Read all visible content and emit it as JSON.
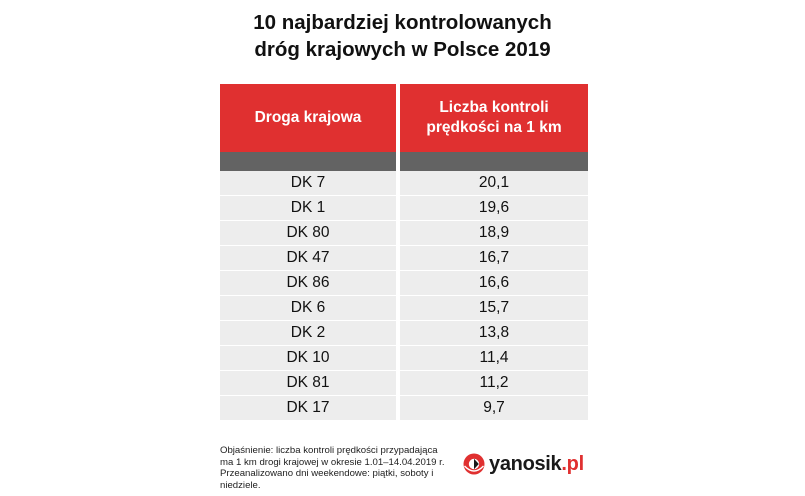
{
  "title": {
    "line1": "10 najbardziej kontrolowanych",
    "line2": "dróg krajowych w Polsce 2019"
  },
  "colors": {
    "header_red": "#e03030",
    "band_gray": "#636363",
    "row_gray": "#ededed",
    "logo_accent": "#e03030"
  },
  "chart_data": {
    "type": "table",
    "title": "10 najbardziej kontrolowanych dróg krajowych w Polsce 2019",
    "columns": [
      "Droga krajowa",
      "Liczba kontroli prędkości na 1 km"
    ],
    "rows": [
      [
        "DK 7",
        "20,1"
      ],
      [
        "DK 1",
        "19,6"
      ],
      [
        "DK 80",
        "18,9"
      ],
      [
        "DK 47",
        "16,7"
      ],
      [
        "DK 86",
        "16,6"
      ],
      [
        "DK 6",
        "15,7"
      ],
      [
        "DK 2",
        "13,8"
      ],
      [
        "DK 10",
        "11,4"
      ],
      [
        "DK 81",
        "11,2"
      ],
      [
        "DK 17",
        "9,7"
      ]
    ]
  },
  "table": {
    "header_col1": "Droga krajowa",
    "header_col2_line1": "Liczba kontroli",
    "header_col2_line2": "prędkości na 1 km"
  },
  "footnote": {
    "line1": "Objaśnienie: liczba kontroli prędkości przypadająca",
    "line2": "ma 1 km drogi krajowej w okresie 1.01–14.04.2019 r.",
    "line3": "Przeanalizowano dni weekendowe: piątki, soboty i",
    "line4": "niedziele."
  },
  "logo": {
    "main_text": "yanosik",
    "accent_text": ".pl",
    "icon": "yanosik-logo-icon"
  }
}
